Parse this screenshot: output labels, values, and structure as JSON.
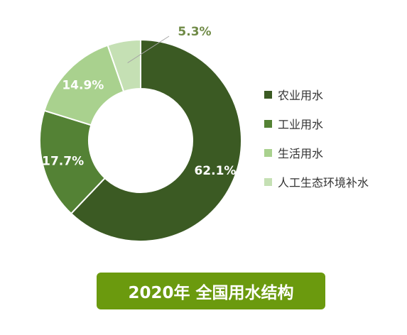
{
  "chart_data": {
    "type": "pie",
    "donut": true,
    "title": "2020年 全国用水结构",
    "slices": [
      {
        "label": "农业用水",
        "value": 62.1,
        "value_label": "62.1%",
        "color": "#3b5a23"
      },
      {
        "label": "工业用水",
        "value": 17.7,
        "value_label": "17.7%",
        "color": "#548235"
      },
      {
        "label": "生活用水",
        "value": 14.9,
        "value_label": "14.9%",
        "color": "#a9d18e"
      },
      {
        "label": "人工生态环境补水",
        "value": 5.3,
        "value_label": "5.3%",
        "color": "#c5e0b4"
      }
    ],
    "legend_position": "right"
  },
  "colors": {
    "banner_bg": "#6b9a0e",
    "outside_label": "#6f8a46",
    "leader_line": "#a6a6a6"
  }
}
